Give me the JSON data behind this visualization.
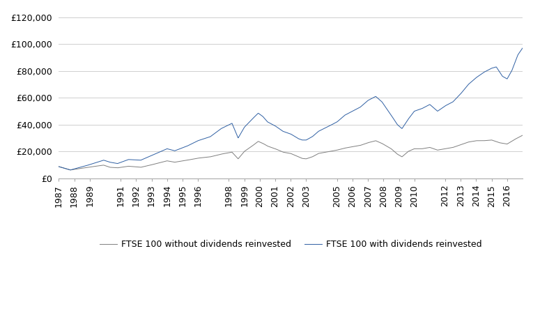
{
  "title": "",
  "xlabel": "",
  "ylabel": "",
  "ylim": [
    0,
    125000
  ],
  "yticks": [
    0,
    20000,
    40000,
    60000,
    80000,
    100000,
    120000
  ],
  "ytick_labels": [
    "£0",
    "£20,000",
    "£40,000",
    "£60,000",
    "£80,000",
    "£100,000",
    "£120,000"
  ],
  "line1_color": "#7f7f7f",
  "line2_color": "#2e5fa3",
  "line1_label": "FTSE 100 without dividends reinvested",
  "line2_label": "FTSE 100 with dividends reinvested",
  "background_color": "#ffffff",
  "grid_color": "#c8c8c8",
  "xtick_years": [
    "1987",
    "1988",
    "1989",
    "1991",
    "1992",
    "1993",
    "1994",
    "1995",
    "1996",
    "1998",
    "1999",
    "2000",
    "2001",
    "2002",
    "2003",
    "2005",
    "2006",
    "2007",
    "2008",
    "2009",
    "2010",
    "2012",
    "2013",
    "2014",
    "2015",
    "2016"
  ],
  "without_div_waypoints": [
    [
      1987.0,
      8700
    ],
    [
      1987.75,
      6200
    ],
    [
      1988.3,
      7200
    ],
    [
      1988.8,
      8000
    ],
    [
      1989.5,
      9200
    ],
    [
      1989.9,
      9800
    ],
    [
      1990.3,
      8200
    ],
    [
      1990.8,
      7800
    ],
    [
      1991.5,
      9000
    ],
    [
      1992.3,
      8200
    ],
    [
      1992.8,
      9500
    ],
    [
      1993.5,
      11500
    ],
    [
      1994.0,
      13000
    ],
    [
      1994.5,
      12000
    ],
    [
      1995.3,
      13500
    ],
    [
      1996.0,
      15000
    ],
    [
      1996.8,
      16000
    ],
    [
      1997.5,
      18000
    ],
    [
      1998.2,
      19500
    ],
    [
      1998.6,
      14500
    ],
    [
      1999.0,
      20000
    ],
    [
      1999.5,
      24000
    ],
    [
      1999.9,
      27500
    ],
    [
      2000.2,
      26000
    ],
    [
      2000.5,
      24000
    ],
    [
      2001.0,
      22000
    ],
    [
      2001.5,
      19500
    ],
    [
      2002.0,
      18500
    ],
    [
      2002.5,
      16000
    ],
    [
      2002.75,
      14800
    ],
    [
      2003.0,
      14500
    ],
    [
      2003.4,
      16000
    ],
    [
      2003.8,
      18500
    ],
    [
      2004.5,
      20000
    ],
    [
      2005.0,
      21000
    ],
    [
      2005.5,
      22500
    ],
    [
      2006.0,
      23500
    ],
    [
      2006.5,
      24500
    ],
    [
      2007.0,
      26500
    ],
    [
      2007.5,
      28000
    ],
    [
      2007.9,
      26000
    ],
    [
      2008.5,
      22000
    ],
    [
      2008.9,
      18000
    ],
    [
      2009.2,
      16000
    ],
    [
      2009.6,
      20000
    ],
    [
      2010.0,
      22000
    ],
    [
      2010.5,
      22000
    ],
    [
      2011.0,
      23000
    ],
    [
      2011.5,
      21000
    ],
    [
      2012.0,
      22000
    ],
    [
      2012.5,
      23000
    ],
    [
      2013.0,
      25000
    ],
    [
      2013.5,
      27000
    ],
    [
      2014.0,
      28000
    ],
    [
      2014.5,
      28000
    ],
    [
      2015.0,
      28500
    ],
    [
      2015.5,
      26500
    ],
    [
      2016.0,
      25500
    ],
    [
      2016.5,
      29000
    ],
    [
      2017.0,
      32000
    ]
  ],
  "with_div_waypoints": [
    [
      1987.0,
      8700
    ],
    [
      1987.75,
      6200
    ],
    [
      1988.3,
      8000
    ],
    [
      1988.8,
      9500
    ],
    [
      1989.5,
      12000
    ],
    [
      1989.9,
      13500
    ],
    [
      1990.3,
      12000
    ],
    [
      1990.8,
      11000
    ],
    [
      1991.5,
      14000
    ],
    [
      1992.3,
      13500
    ],
    [
      1992.8,
      16000
    ],
    [
      1993.5,
      19500
    ],
    [
      1994.0,
      22000
    ],
    [
      1994.5,
      20500
    ],
    [
      1995.3,
      24000
    ],
    [
      1996.0,
      28000
    ],
    [
      1996.8,
      31000
    ],
    [
      1997.5,
      37000
    ],
    [
      1998.2,
      41000
    ],
    [
      1998.6,
      30000
    ],
    [
      1999.0,
      38000
    ],
    [
      1999.5,
      44000
    ],
    [
      1999.9,
      48500
    ],
    [
      2000.2,
      46000
    ],
    [
      2000.5,
      42000
    ],
    [
      2001.0,
      39000
    ],
    [
      2001.5,
      35000
    ],
    [
      2002.0,
      33000
    ],
    [
      2002.5,
      29500
    ],
    [
      2002.75,
      28500
    ],
    [
      2003.0,
      28500
    ],
    [
      2003.4,
      31000
    ],
    [
      2003.8,
      35000
    ],
    [
      2004.5,
      39000
    ],
    [
      2005.0,
      42000
    ],
    [
      2005.5,
      47000
    ],
    [
      2006.0,
      50000
    ],
    [
      2006.5,
      53000
    ],
    [
      2007.0,
      58000
    ],
    [
      2007.5,
      61000
    ],
    [
      2007.9,
      57000
    ],
    [
      2008.5,
      47000
    ],
    [
      2008.9,
      40000
    ],
    [
      2009.2,
      37000
    ],
    [
      2009.6,
      44000
    ],
    [
      2010.0,
      50000
    ],
    [
      2010.5,
      52000
    ],
    [
      2011.0,
      55000
    ],
    [
      2011.5,
      50000
    ],
    [
      2012.0,
      54000
    ],
    [
      2012.5,
      57000
    ],
    [
      2013.0,
      63000
    ],
    [
      2013.5,
      70000
    ],
    [
      2014.0,
      75000
    ],
    [
      2014.5,
      79000
    ],
    [
      2015.0,
      82000
    ],
    [
      2015.3,
      83000
    ],
    [
      2015.7,
      76000
    ],
    [
      2016.0,
      74000
    ],
    [
      2016.3,
      80000
    ],
    [
      2016.7,
      92000
    ],
    [
      2017.0,
      97000
    ]
  ]
}
